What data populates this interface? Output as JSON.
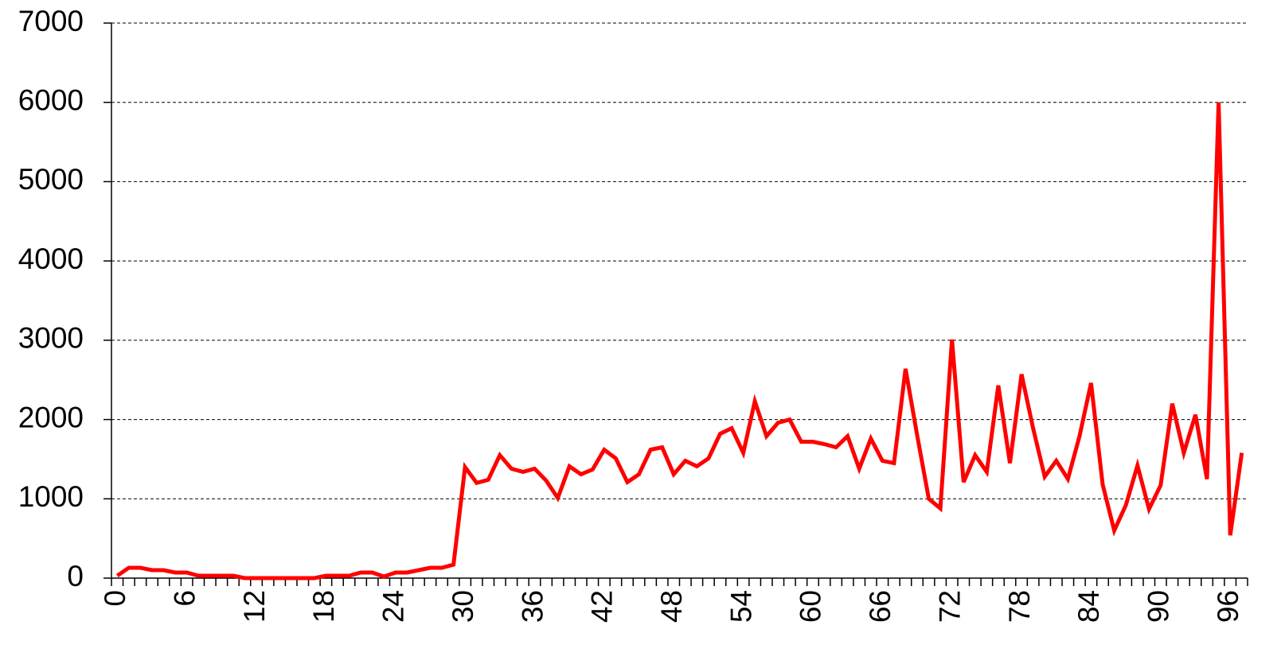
{
  "chart_data": {
    "type": "line",
    "categories": [
      "0",
      null,
      null,
      null,
      null,
      null,
      "6",
      null,
      null,
      null,
      null,
      null,
      "12",
      null,
      null,
      null,
      null,
      null,
      "18",
      null,
      null,
      null,
      null,
      null,
      "24",
      null,
      null,
      null,
      null,
      null,
      "30",
      null,
      null,
      null,
      null,
      null,
      "36",
      null,
      null,
      null,
      null,
      null,
      "42",
      null,
      null,
      null,
      null,
      null,
      "48",
      null,
      null,
      null,
      null,
      null,
      "54",
      null,
      null,
      null,
      null,
      null,
      "60",
      null,
      null,
      null,
      null,
      null,
      "66",
      null,
      null,
      null,
      null,
      null,
      "72",
      null,
      null,
      null,
      null,
      null,
      "78",
      null,
      null,
      null,
      null,
      null,
      "84",
      null,
      null,
      null,
      null,
      null,
      "90",
      null,
      null,
      null,
      null,
      null,
      "96",
      null
    ],
    "series": [
      {
        "color": "#ff0000",
        "values": [
          30,
          130,
          130,
          100,
          100,
          70,
          70,
          30,
          30,
          30,
          30,
          0,
          0,
          0,
          0,
          0,
          0,
          0,
          30,
          30,
          30,
          70,
          70,
          20,
          70,
          70,
          100,
          130,
          130,
          170,
          1400,
          1200,
          1240,
          1550,
          1380,
          1340,
          1380,
          1230,
          1010,
          1410,
          1310,
          1370,
          1620,
          1510,
          1210,
          1310,
          1620,
          1650,
          1310,
          1480,
          1410,
          1510,
          1820,
          1890,
          1580,
          2230,
          1790,
          1960,
          2000,
          1720,
          1720,
          1690,
          1650,
          1790,
          1380,
          1760,
          1480,
          1450,
          2640,
          1800,
          1000,
          880,
          3010,
          1210,
          1550,
          1340,
          2430,
          1450,
          2570,
          1890,
          1280,
          1480,
          1250,
          1790,
          2460,
          1180,
          600,
          920,
          1420,
          870,
          1170,
          2200,
          1580,
          2060,
          1250,
          6000,
          540,
          1580
        ]
      }
    ],
    "ylim": [
      0,
      7000
    ],
    "yticks": [
      0,
      1000,
      2000,
      3000,
      4000,
      5000,
      6000,
      7000
    ],
    "grid": true
  }
}
